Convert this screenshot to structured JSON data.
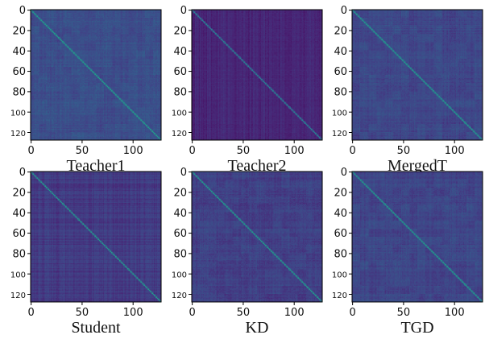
{
  "chart_data": [
    {
      "type": "heatmap",
      "title": "Teacher1",
      "matrix_size": 128,
      "xticks": [
        0,
        50,
        100
      ],
      "yticks": [
        0,
        20,
        40,
        60,
        80,
        100,
        120
      ],
      "xlim": [
        0,
        127
      ],
      "ylim": [
        127,
        0
      ],
      "colormap": "viridis",
      "diagonal_value": 0.55,
      "background_mean": 0.24,
      "background_spread": 0.05,
      "texture": "block-mottled",
      "seed": 11
    },
    {
      "type": "heatmap",
      "title": "Teacher2",
      "matrix_size": 128,
      "xticks": [
        0,
        50,
        100
      ],
      "yticks": [
        0,
        20,
        40,
        60,
        80,
        100,
        120
      ],
      "xlim": [
        0,
        127
      ],
      "ylim": [
        127,
        0
      ],
      "colormap": "viridis",
      "diagonal_value": 0.45,
      "background_mean": 0.11,
      "background_spread": 0.04,
      "texture": "vertical-stripes",
      "seed": 23
    },
    {
      "type": "heatmap",
      "title": "MergedT",
      "matrix_size": 128,
      "xticks": [
        0,
        50,
        100
      ],
      "yticks": [
        0,
        20,
        40,
        60,
        80,
        100,
        120
      ],
      "xlim": [
        0,
        127
      ],
      "ylim": [
        127,
        0
      ],
      "colormap": "viridis",
      "diagonal_value": 0.55,
      "background_mean": 0.22,
      "background_spread": 0.05,
      "texture": "block-mottled",
      "seed": 37
    },
    {
      "type": "heatmap",
      "title": "Student",
      "matrix_size": 128,
      "xticks": [
        0,
        50,
        100
      ],
      "yticks": [
        0,
        20,
        40,
        60,
        80,
        100,
        120
      ],
      "xlim": [
        0,
        127
      ],
      "ylim": [
        127,
        0
      ],
      "colormap": "viridis",
      "diagonal_value": 0.55,
      "background_mean": 0.17,
      "background_spread": 0.05,
      "texture": "grid-stripes",
      "seed": 41
    },
    {
      "type": "heatmap",
      "title": "KD",
      "matrix_size": 128,
      "xticks": [
        0,
        50,
        100
      ],
      "yticks": [
        0,
        20,
        40,
        60,
        80,
        100,
        120
      ],
      "xlim": [
        0,
        127
      ],
      "ylim": [
        127,
        0
      ],
      "colormap": "viridis",
      "diagonal_value": 0.55,
      "background_mean": 0.19,
      "background_spread": 0.05,
      "texture": "block-mottled",
      "seed": 53
    },
    {
      "type": "heatmap",
      "title": "TGD",
      "matrix_size": 128,
      "xticks": [
        0,
        50,
        100
      ],
      "yticks": [
        0,
        20,
        40,
        60,
        80,
        100,
        120
      ],
      "xlim": [
        0,
        127
      ],
      "ylim": [
        127,
        0
      ],
      "colormap": "viridis",
      "diagonal_value": 0.55,
      "background_mean": 0.21,
      "background_spread": 0.05,
      "texture": "block-mottled",
      "seed": 67
    }
  ]
}
